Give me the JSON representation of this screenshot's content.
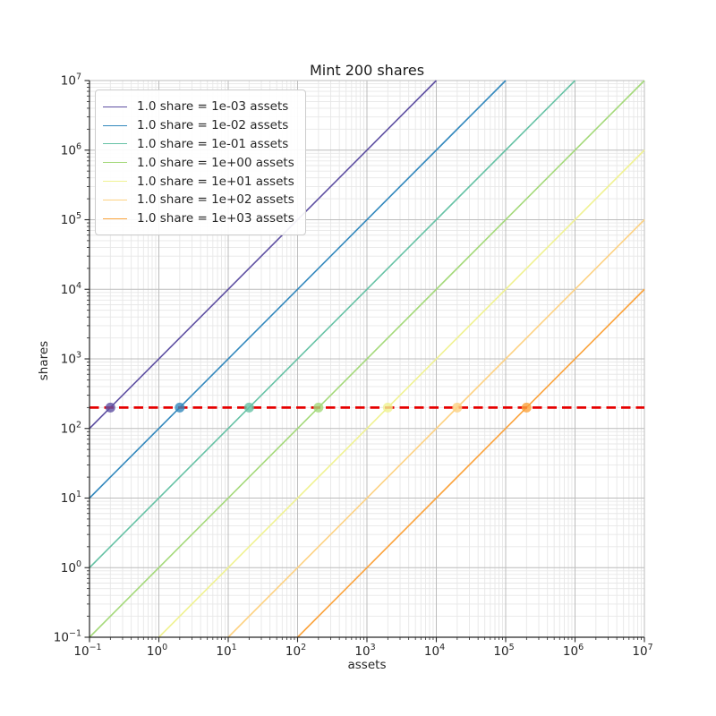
{
  "chart_data": {
    "type": "line",
    "title": "Mint 200 shares",
    "xlabel": "assets",
    "ylabel": "shares",
    "xscale": "log",
    "yscale": "log",
    "xlim": [
      0.1,
      10000000
    ],
    "ylim": [
      0.1,
      10000000
    ],
    "x_tick_exponents": [
      -1,
      0,
      1,
      2,
      3,
      4,
      5,
      6,
      7
    ],
    "y_tick_exponents": [
      -1,
      0,
      1,
      2,
      3,
      4,
      5,
      6,
      7
    ],
    "grid": "major+minor",
    "legend_position": "upper-left",
    "mint_shares": 200,
    "series": [
      {
        "label": "1.0 share = 1e-03 assets",
        "color": "#5e4fa2",
        "assets_per_share": 0.001,
        "line_x": [
          0.1,
          10000
        ],
        "line_y": [
          100,
          10000000
        ],
        "point": {
          "x": 0.2,
          "y": 200
        }
      },
      {
        "label": "1.0 share = 1e-02 assets",
        "color": "#3288bd",
        "assets_per_share": 0.01,
        "line_x": [
          0.1,
          100000
        ],
        "line_y": [
          10,
          10000000
        ],
        "point": {
          "x": 2,
          "y": 200
        }
      },
      {
        "label": "1.0 share = 1e-01 assets",
        "color": "#66c2a5",
        "assets_per_share": 0.1,
        "line_x": [
          0.1,
          1000000
        ],
        "line_y": [
          1,
          10000000
        ],
        "point": {
          "x": 20,
          "y": 200
        }
      },
      {
        "label": "1.0 share = 1e+00 assets",
        "color": "#a4d97a",
        "assets_per_share": 1,
        "line_x": [
          0.1,
          10000000
        ],
        "line_y": [
          0.1,
          10000000
        ],
        "point": {
          "x": 200,
          "y": 200
        }
      },
      {
        "label": "1.0 share = 1e+01 assets",
        "color": "#f0f292",
        "assets_per_share": 10,
        "line_x": [
          1,
          10000000
        ],
        "line_y": [
          0.1,
          1000000
        ],
        "point": {
          "x": 2000,
          "y": 200
        }
      },
      {
        "label": "1.0 share = 1e+02 assets",
        "color": "#fdd283",
        "assets_per_share": 100,
        "line_x": [
          10,
          10000000
        ],
        "line_y": [
          0.1,
          100000
        ],
        "point": {
          "x": 20000,
          "y": 200
        }
      },
      {
        "label": "1.0 share = 1e+03 assets",
        "color": "#fba33c",
        "assets_per_share": 1000,
        "line_x": [
          100,
          10000000
        ],
        "line_y": [
          0.1,
          10000
        ],
        "point": {
          "x": 200000,
          "y": 200
        }
      }
    ],
    "hline": {
      "y": 200,
      "color": "#e60000",
      "style": "dashed"
    }
  }
}
